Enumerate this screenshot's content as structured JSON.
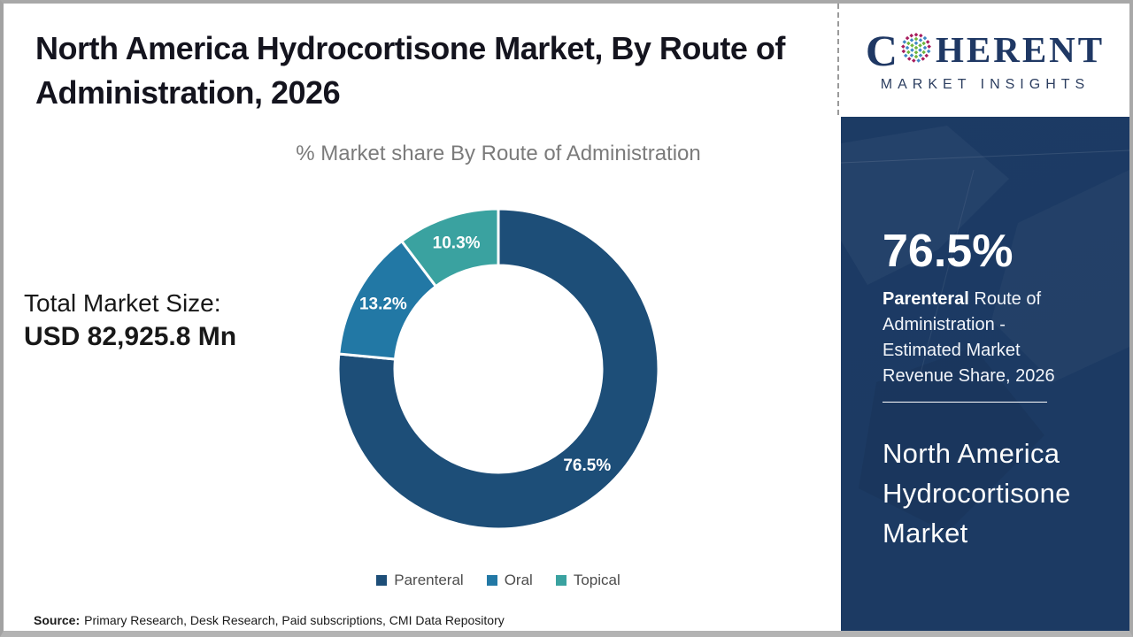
{
  "header": {
    "title": "North America Hydrocortisone Market, By Route of Administration, 2026"
  },
  "logo": {
    "letter_c": "C",
    "brand_rest": "HERENT",
    "tagline": "MARKET INSIGHTS"
  },
  "chart_data": {
    "type": "pie",
    "donut": true,
    "title": "% Market share By Route of Administration",
    "categories": [
      "Parenteral",
      "Oral",
      "Topical"
    ],
    "values": [
      76.5,
      13.2,
      10.3
    ],
    "data_labels": [
      "76.5%",
      "13.2%",
      "10.3%"
    ],
    "colors": [
      "#1d4e78",
      "#2278a5",
      "#3aa2a0"
    ],
    "start_angle_deg": 0,
    "direction": "clockwise",
    "inner_radius_ratio": 0.645,
    "legend_position": "bottom"
  },
  "stats": {
    "total_label": "Total Market Size:",
    "total_value": "USD 82,925.8 Mn"
  },
  "sidebar": {
    "share_value": "76.5%",
    "share_desc_bold": "Parenteral",
    "share_desc_rest": " Route of Administration - Estimated Market Revenue Share, 2026",
    "market_title": "North America Hydrocortisone Market"
  },
  "footer": {
    "source_label": "Source:",
    "source_text": "Primary Research, Desk Research, Paid subscriptions, CMI Data Repository"
  },
  "colors": {
    "sidebar_navy": "#1c3a63",
    "logo_navy": "#1f3864",
    "globe_green": "#6fb53e",
    "globe_blue": "#3f88c5",
    "globe_crimson": "#a81c5c",
    "title_text": "#14141e",
    "subtitle_gray": "#7b7b7b",
    "frame_gray": "#a8a8a8"
  }
}
